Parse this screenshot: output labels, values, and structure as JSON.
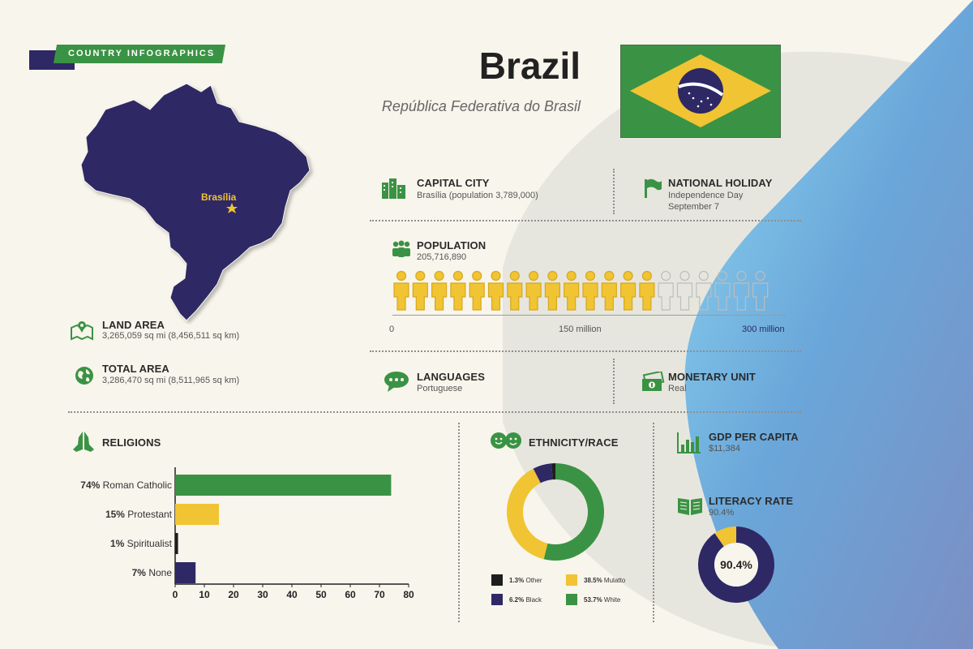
{
  "colors": {
    "green": "#3a9344",
    "yellow": "#f0c433",
    "navy": "#2e2865",
    "blue": "#5aa0da",
    "background": "#f8f5ec",
    "black": "#1e1e1e"
  },
  "banner": {
    "label": "COUNTRY INFOGRAPHICS"
  },
  "country": {
    "name": "Brazil",
    "official_name": "República Federativa do Brasil"
  },
  "map": {
    "capital_label": "Brasília"
  },
  "capital": {
    "title": "CAPITAL CITY",
    "value": "Brasília (population 3,789,000)"
  },
  "holiday": {
    "title": "NATIONAL HOLIDAY",
    "line1": "Independence Day",
    "line2": "September 7"
  },
  "population": {
    "title": "POPULATION",
    "value": "205,716,890",
    "icon_total": 20,
    "icons_filled": 14,
    "axis": [
      "0",
      "150 million",
      "300 million"
    ]
  },
  "land_area": {
    "title": "LAND AREA",
    "value": "3,265,059 sq mi (8,456,511 sq km)"
  },
  "total_area": {
    "title": "TOTAL AREA",
    "value": "3,286,470 sq mi (8,511,965 sq km)"
  },
  "languages": {
    "title": "LANGUAGES",
    "value": "Portuguese"
  },
  "monetary": {
    "title": "MONETARY UNIT",
    "value": "Real"
  },
  "religions": {
    "title": "RELIGIONS",
    "chart_data": {
      "type": "bar",
      "orientation": "horizontal",
      "categories": [
        "Roman Catholic",
        "Protestant",
        "Spiritualist",
        "None"
      ],
      "value_labels": [
        "74%",
        "15%",
        "1%",
        "7%"
      ],
      "values": [
        74,
        15,
        1,
        7
      ],
      "xlim": [
        0,
        80
      ],
      "xticks": [
        "0",
        "10",
        "20",
        "30",
        "40",
        "50",
        "60",
        "70",
        "80"
      ],
      "bar_colors": [
        "#3a9344",
        "#f0c433",
        "#1e1e1e",
        "#2e2865"
      ]
    }
  },
  "ethnicity": {
    "title": "ETHNICITY/RACE",
    "chart_data": {
      "type": "pie",
      "variant": "donut",
      "slices": [
        {
          "label": "Other",
          "pct_label": "1.3%",
          "value": 1.3,
          "color": "#1e1e1e"
        },
        {
          "label": "Black",
          "pct_label": "6.2%",
          "value": 6.2,
          "color": "#2e2865"
        },
        {
          "label": "Mulatto",
          "pct_label": "38.5%",
          "value": 38.5,
          "color": "#f0c433"
        },
        {
          "label": "White",
          "pct_label": "53.7%",
          "value": 53.7,
          "color": "#3a9344"
        }
      ]
    }
  },
  "gdp": {
    "title": "GDP PER CAPITA",
    "value": "$11,384"
  },
  "literacy": {
    "title": "LITERACY RATE",
    "value": "90.4%",
    "chart_data": {
      "type": "pie",
      "variant": "donut",
      "center_label": "90.4%",
      "slices": [
        {
          "label": "Literate",
          "value": 90.4,
          "color": "#2e2865"
        },
        {
          "label": "Illiterate",
          "value": 9.6,
          "color": "#f0c433"
        }
      ]
    }
  }
}
